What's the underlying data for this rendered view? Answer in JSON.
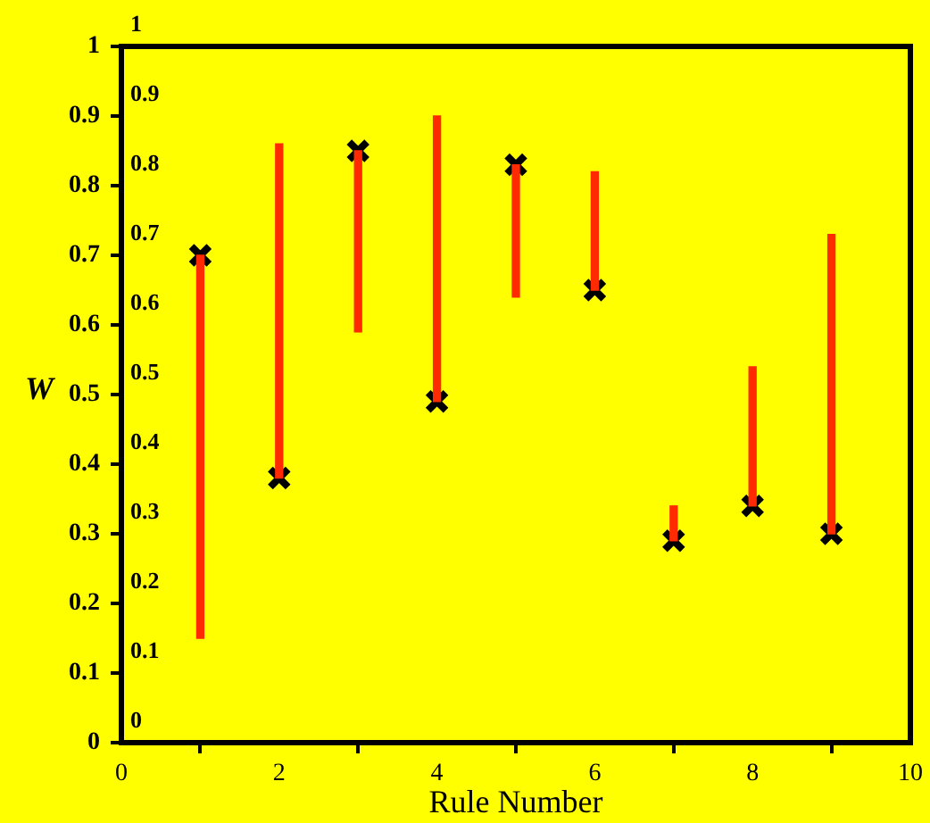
{
  "chart_data": {
    "type": "bar",
    "xlabel": "Rule Number",
    "ylabel": "W",
    "xlim": [
      0,
      10
    ],
    "xticks": [
      0,
      2,
      4,
      6,
      8,
      10
    ],
    "ylim": [
      0,
      1
    ],
    "yticks": [
      0,
      0.1,
      0.2,
      0.3,
      0.4,
      0.5,
      0.6,
      0.7,
      0.8,
      0.9,
      1
    ],
    "y2lim": [
      0,
      1
    ],
    "y2ticks": [
      0,
      0.1,
      0.2,
      0.3,
      0.4,
      0.5,
      0.6,
      0.7,
      0.8,
      0.9,
      1
    ],
    "grid": false,
    "legend": false,
    "series": [
      {
        "color": "#ff2a00",
        "x": [
          1,
          2,
          3,
          4,
          5,
          6,
          7,
          8,
          9
        ],
        "base": [
          0.15,
          0.38,
          0.59,
          0.49,
          0.64,
          0.65,
          0.29,
          0.34,
          0.3
        ],
        "values": [
          0.55,
          0.48,
          0.26,
          0.41,
          0.19,
          0.17,
          0.05,
          0.2,
          0.43
        ]
      },
      {
        "type": "scatter",
        "color": "#000000",
        "marker": "cross",
        "x": [
          1,
          2,
          3,
          4,
          5,
          6,
          7,
          8,
          9
        ],
        "values": [
          0.7,
          0.38,
          0.85,
          0.49,
          0.83,
          0.65,
          0.29,
          0.34,
          0.3
        ]
      }
    ]
  }
}
